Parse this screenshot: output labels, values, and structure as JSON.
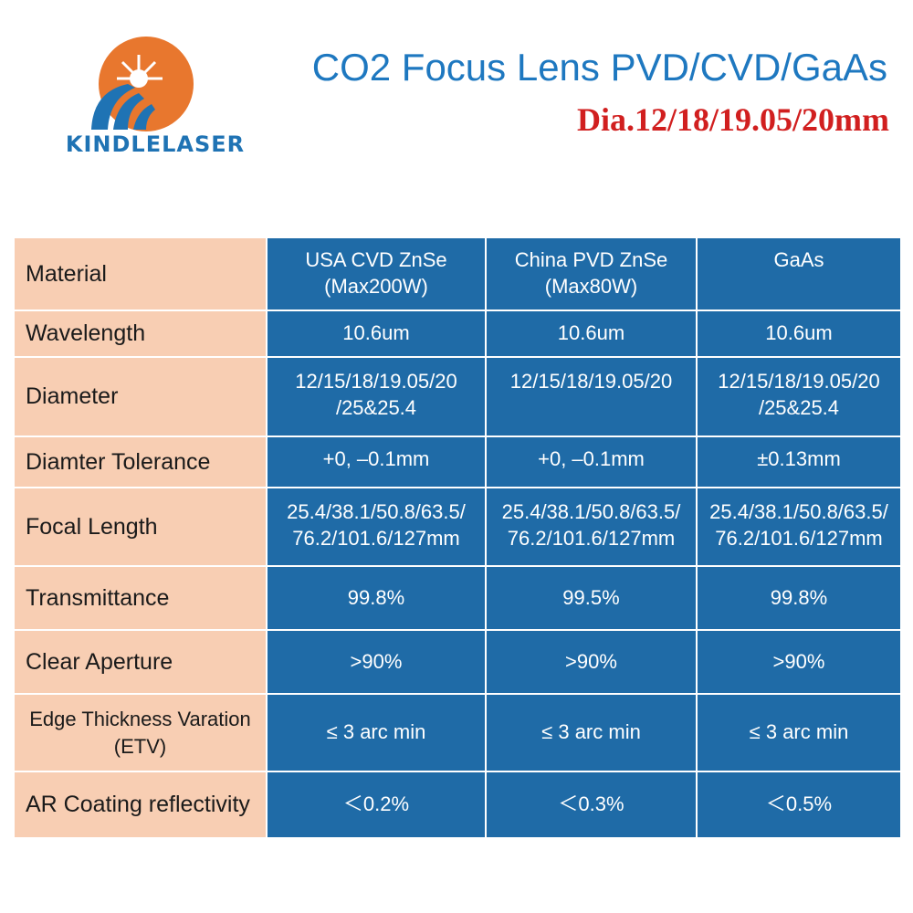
{
  "brand": {
    "name": "KINDLELASER",
    "colors": {
      "blue": "#1f73b4",
      "orange": "#e8772e"
    }
  },
  "header": {
    "title": "CO2 Focus Lens PVD/CVD/GaAs",
    "subtitle": "Dia.12/18/19.05/20mm",
    "title_color": "#1e78c0",
    "subtitle_color": "#d11f1f"
  },
  "table": {
    "label_bg": "#f8ceb3",
    "cell_bg": "#1f6ba7",
    "columns": [
      {
        "name": "USA CVD ZnSe",
        "note": "(Max200W)"
      },
      {
        "name": "China PVD ZnSe",
        "note": "(Max80W)"
      },
      {
        "name": "GaAs",
        "note": ""
      }
    ],
    "rows": [
      {
        "label": "Wavelength",
        "values": [
          [
            "10.6um"
          ],
          [
            "10.6um"
          ],
          [
            "10.6um"
          ]
        ]
      },
      {
        "label": "Diameter",
        "values": [
          [
            "12/15/18/19.05/20",
            "/25&25.4"
          ],
          [
            "12/15/18/19.05/20"
          ],
          [
            "12/15/18/19.05/20",
            "/25&25.4"
          ]
        ]
      },
      {
        "label": "Diamter Tolerance",
        "values": [
          [
            "+0, –0.1mm"
          ],
          [
            "+0, –0.1mm"
          ],
          [
            "±0.13mm"
          ]
        ]
      },
      {
        "label": "Focal Length",
        "values": [
          [
            "25.4/38.1/50.8/63.5/",
            "76.2/101.6/127mm"
          ],
          [
            "25.4/38.1/50.8/63.5/",
            "76.2/101.6/127mm"
          ],
          [
            "25.4/38.1/50.8/63.5/",
            "76.2/101.6/127mm"
          ]
        ]
      },
      {
        "label": "Transmittance",
        "values": [
          [
            "99.8%"
          ],
          [
            "99.5%"
          ],
          [
            "99.8%"
          ]
        ]
      },
      {
        "label": "Clear Aperture",
        "values": [
          [
            ">90%"
          ],
          [
            ">90%"
          ],
          [
            ">90%"
          ]
        ]
      },
      {
        "label": "Edge Thickness Varation",
        "label2": "(ETV)",
        "values": [
          [
            "≤ 3 arc min"
          ],
          [
            "≤ 3 arc min"
          ],
          [
            "≤ 3 arc min"
          ]
        ]
      },
      {
        "label": "AR Coating reflectivity",
        "values": [
          [
            "＜0.2%"
          ],
          [
            "＜0.3%"
          ],
          [
            "＜0.5%"
          ]
        ]
      }
    ],
    "material_label": "Material"
  }
}
